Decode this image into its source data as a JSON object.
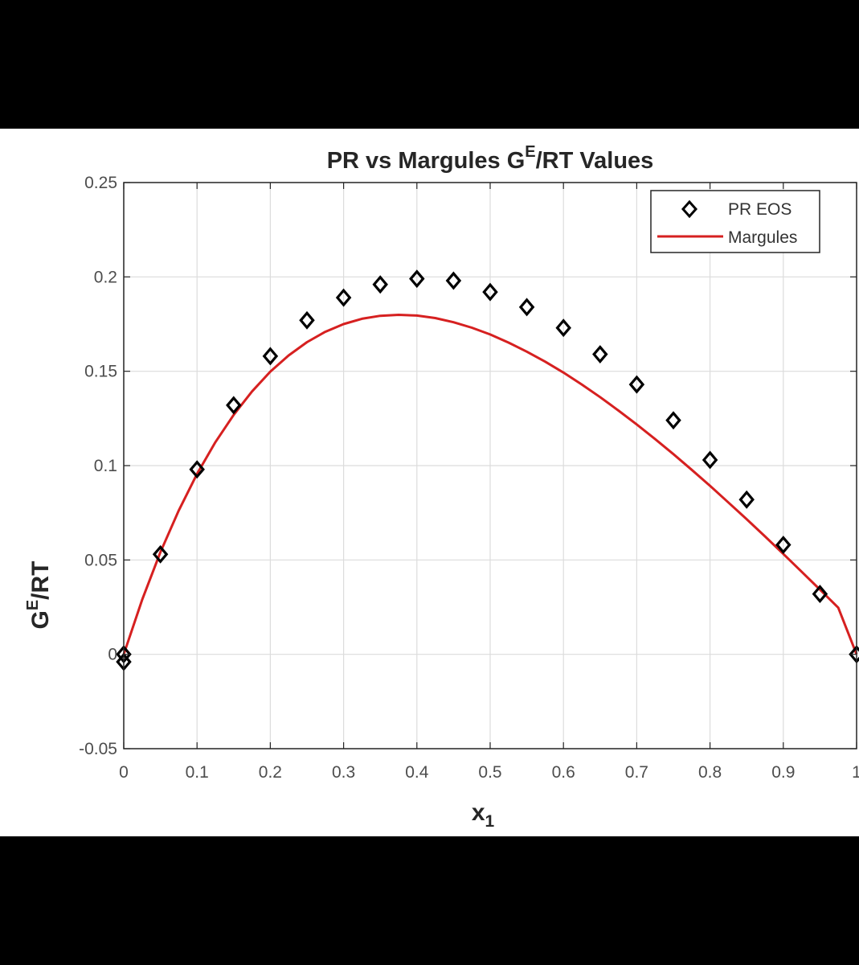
{
  "chart_data": {
    "type": "scatter",
    "title": "PR vs Margules G",
    "title_sup": "E",
    "title_tail": "/RT Values",
    "xlabel": "x",
    "xlabel_sub": "1",
    "ylabel": "G",
    "ylabel_sup": "E",
    "ylabel_tail": "/RT",
    "xlim": [
      0,
      1
    ],
    "ylim": [
      -0.05,
      0.25
    ],
    "xticks": [
      0,
      0.1,
      0.2,
      0.3,
      0.4,
      0.5,
      0.6,
      0.7,
      0.8,
      0.9,
      1
    ],
    "xtick_labels": [
      "0",
      "0.1",
      "0.2",
      "0.3",
      "0.4",
      "0.5",
      "0.6",
      "0.7",
      "0.8",
      "0.9",
      "1"
    ],
    "yticks": [
      -0.05,
      0,
      0.05,
      0.1,
      0.15,
      0.2,
      0.25
    ],
    "ytick_labels": [
      "-0.05",
      "0",
      "0.05",
      "0.1",
      "0.15",
      "0.2",
      "0.25"
    ],
    "grid": true,
    "legend_position": "top-right",
    "series": [
      {
        "name": "PR EOS",
        "kind": "markers",
        "marker": "diamond",
        "color": "#000000",
        "x": [
          0,
          0,
          0.05,
          0.1,
          0.15,
          0.2,
          0.25,
          0.3,
          0.35,
          0.4,
          0.45,
          0.5,
          0.55,
          0.6,
          0.65,
          0.7,
          0.75,
          0.8,
          0.85,
          0.9,
          0.95,
          1.0
        ],
        "y": [
          0.0,
          -0.004,
          0.053,
          0.098,
          0.132,
          0.158,
          0.177,
          0.189,
          0.196,
          0.199,
          0.198,
          0.192,
          0.184,
          0.173,
          0.159,
          0.143,
          0.124,
          0.103,
          0.082,
          0.058,
          0.032,
          0.0
        ]
      },
      {
        "name": "Margules",
        "kind": "line",
        "color": "#d62020",
        "x": [
          0,
          0.025,
          0.05,
          0.075,
          0.1,
          0.125,
          0.15,
          0.175,
          0.2,
          0.225,
          0.25,
          0.275,
          0.3,
          0.325,
          0.35,
          0.375,
          0.4,
          0.425,
          0.45,
          0.475,
          0.5,
          0.525,
          0.55,
          0.575,
          0.6,
          0.625,
          0.65,
          0.675,
          0.7,
          0.725,
          0.75,
          0.775,
          0.8,
          0.825,
          0.85,
          0.875,
          0.9,
          0.925,
          0.95,
          0.975,
          1.0
        ],
        "y": [
          0.0,
          0.0288,
          0.0541,
          0.0762,
          0.0956,
          0.1124,
          0.1269,
          0.1393,
          0.1498,
          0.1584,
          0.1654,
          0.1709,
          0.175,
          0.1778,
          0.1794,
          0.1799,
          0.1795,
          0.1782,
          0.176,
          0.1731,
          0.1695,
          0.1652,
          0.1604,
          0.1551,
          0.1493,
          0.143,
          0.1363,
          0.1292,
          0.1218,
          0.1141,
          0.1061,
          0.0978,
          0.0893,
          0.0805,
          0.0716,
          0.0625,
          0.0532,
          0.0438,
          0.0343,
          0.0247,
          0.0
        ]
      }
    ]
  }
}
